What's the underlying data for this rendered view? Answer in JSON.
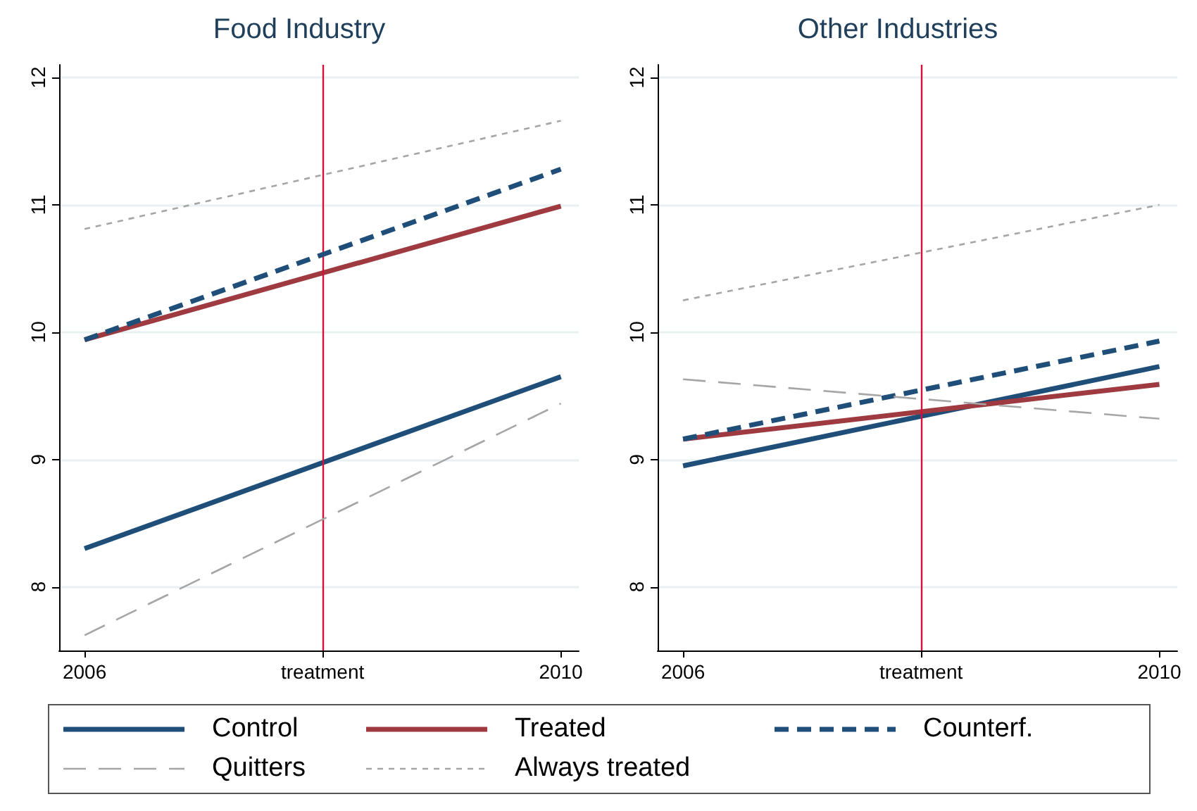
{
  "chart_data": [
    {
      "type": "line",
      "title": "Food Industry",
      "x": [
        "2006",
        "2010"
      ],
      "xlim": [
        "2005-10-15",
        "2010-02-25"
      ],
      "xticks": [
        "2006",
        {
          "value": "2008",
          "label": "treatment"
        },
        "2010"
      ],
      "ylim": [
        7.5,
        12.1
      ],
      "yticks": [
        8,
        9,
        10,
        11,
        12
      ],
      "grid": "y",
      "legend": "bottom",
      "marker": "none",
      "ref_lines": [
        {
          "axis": "x",
          "value": "2008",
          "color": "#d6103a"
        }
      ],
      "series": [
        {
          "name": "Control",
          "color": "#1f4e79",
          "line_style": "solid",
          "values": [
            8.3,
            9.65
          ]
        },
        {
          "name": "Treated",
          "color": "#9e3a40",
          "line_style": "solid",
          "values": [
            9.94,
            10.99
          ]
        },
        {
          "name": "Counterf.",
          "color": "#1f4e79",
          "line_style": "dashed",
          "values": [
            9.94,
            11.28
          ]
        },
        {
          "name": "Quitters",
          "color": "#a6a6a6",
          "line_style": "dashed",
          "values": [
            7.62,
            9.44
          ]
        },
        {
          "name": "Always treated",
          "color": "#a6a6a6",
          "line_style": "dotted",
          "values": [
            10.81,
            11.66
          ]
        }
      ]
    },
    {
      "type": "line",
      "title": "Other Industries",
      "x": [
        "2006",
        "2010"
      ],
      "xlim": [
        "2005-10-15",
        "2010-02-25"
      ],
      "xticks": [
        "2006",
        {
          "value": "2008",
          "label": "treatment"
        },
        "2010"
      ],
      "ylim": [
        7.5,
        12.1
      ],
      "yticks": [
        8,
        9,
        10,
        11,
        12
      ],
      "grid": "y",
      "marker": "none",
      "ref_lines": [
        {
          "axis": "x",
          "value": "2008",
          "color": "#d6103a"
        }
      ],
      "series": [
        {
          "color": "#1f4e79",
          "line_style": "solid",
          "values": [
            8.95,
            9.73
          ]
        },
        {
          "color": "#9e3a40",
          "line_style": "solid",
          "values": [
            9.16,
            9.59
          ]
        },
        {
          "color": "#1f4e79",
          "line_style": "dashed",
          "values": [
            9.16,
            9.93
          ]
        },
        {
          "color": "#a6a6a6",
          "line_style": "dashed",
          "values": [
            9.63,
            9.32
          ]
        },
        {
          "color": "#a6a6a6",
          "line_style": "dotted",
          "values": [
            10.25,
            11.0
          ]
        }
      ]
    }
  ]
}
